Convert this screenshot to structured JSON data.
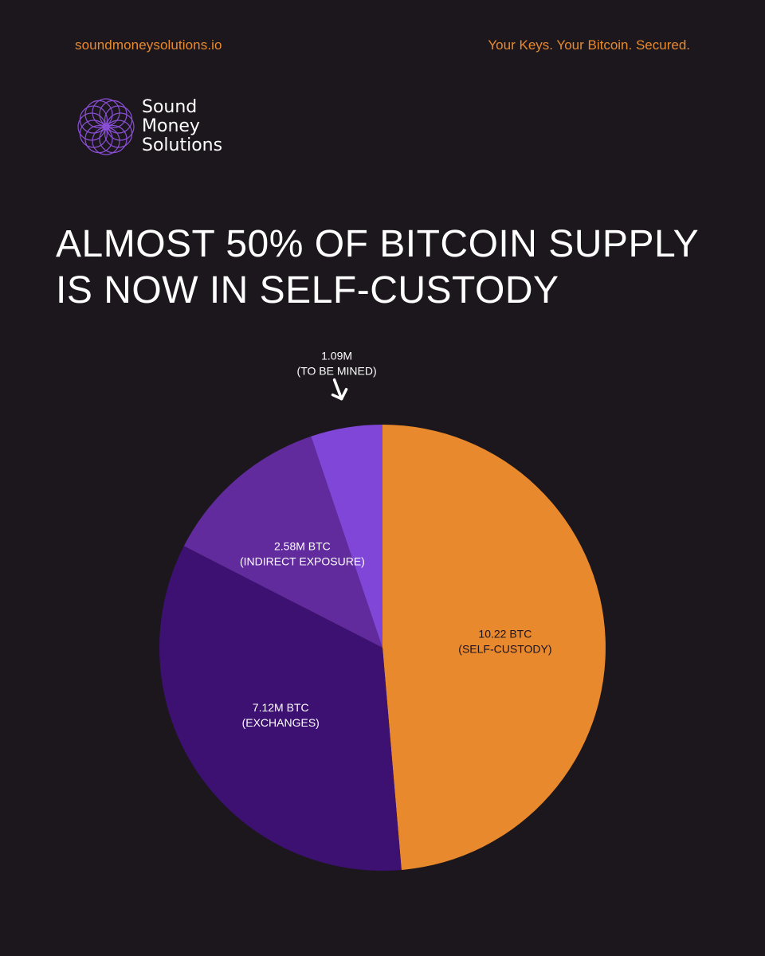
{
  "header": {
    "website": "soundmoneysolutions.io",
    "tagline": "Your Keys. Your Bitcoin. Secured."
  },
  "brand": {
    "name_line1": "Sound",
    "name_line2": "Money",
    "name_line3": "Solutions",
    "logo_icon": "flower-of-life-icon",
    "accent_color": "#e8892e",
    "logo_color": "#8a4fd6"
  },
  "headline": {
    "line1": "ALMOST 50% OF BITCOIN SUPPLY",
    "line2": "IS NOW IN SELF-CUSTODY"
  },
  "chart_data": {
    "type": "pie",
    "title": "ALMOST 50% OF BITCOIN SUPPLY IS NOW IN SELF-CUSTODY",
    "start_angle_deg": 0,
    "direction": "clockwise",
    "slices": [
      {
        "key": "self-custody",
        "value": 10.22,
        "line1": "10.22 BTC",
        "line2": "(SELF-CUSTODY)",
        "color": "#e8892e",
        "text_style": "dark"
      },
      {
        "key": "exchanges",
        "value": 7.12,
        "line1": "7.12M BTC",
        "line2": "(EXCHANGES)",
        "color": "#3d1172",
        "text_style": "light"
      },
      {
        "key": "indirect-exposure",
        "value": 2.58,
        "line1": "2.58M BTC",
        "line2": "(INDIRECT EXPOSURE)",
        "color": "#612b9d",
        "text_style": "light"
      },
      {
        "key": "to-be-mined",
        "value": 1.09,
        "line1": "1.09M",
        "line2": "(TO BE MINED)",
        "color": "#7f46d8",
        "text_style": "light",
        "callout": true,
        "callout_icon": "down-arrow-icon"
      }
    ]
  }
}
